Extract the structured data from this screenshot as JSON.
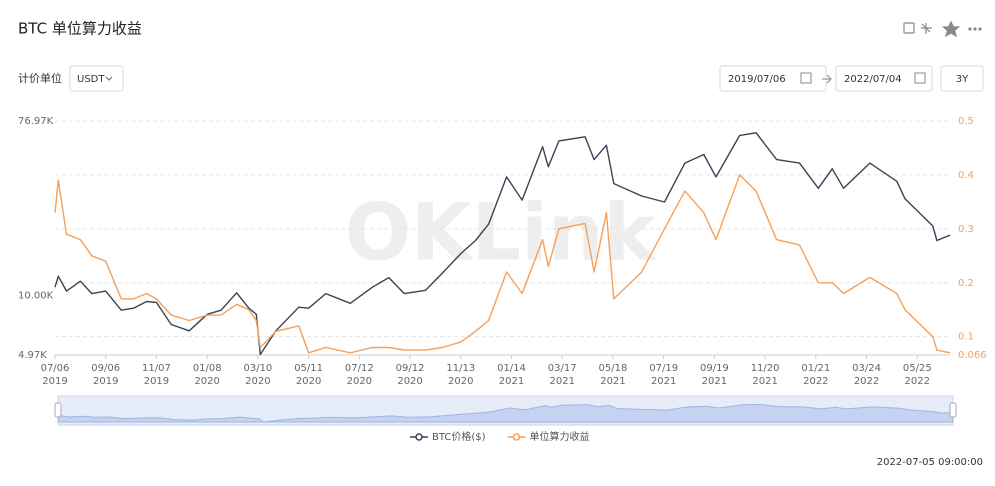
{
  "title": "BTC 单位算力收益",
  "controls": {
    "unit_label": "计价单位",
    "unit": "USDT",
    "start_date": "2019/07/06",
    "end_date": "2022/07/04",
    "range": "3Y"
  },
  "watermark": "OKLink",
  "timestamp": "2022-07-05 09:00:00",
  "chart_data": {
    "type": "line",
    "x": [
      "2019-07-06",
      "2019-07-10",
      "2019-07-20",
      "2019-08-06",
      "2019-08-20",
      "2019-09-06",
      "2019-09-25",
      "2019-10-10",
      "2019-10-26",
      "2019-11-07",
      "2019-11-25",
      "2019-12-17",
      "2020-01-08",
      "2020-01-25",
      "2020-02-13",
      "2020-02-28",
      "2020-03-08",
      "2020-03-13",
      "2020-04-01",
      "2020-04-29",
      "2020-05-11",
      "2020-06-01",
      "2020-07-01",
      "2020-07-28",
      "2020-08-17",
      "2020-09-05",
      "2020-10-01",
      "2020-10-21",
      "2020-11-13",
      "2020-12-01",
      "2020-12-17",
      "2021-01-08",
      "2021-01-27",
      "2021-02-21",
      "2021-02-28",
      "2021-03-13",
      "2021-04-14",
      "2021-04-25",
      "2021-05-10",
      "2021-05-19",
      "2021-06-22",
      "2021-07-20",
      "2021-08-14",
      "2021-09-06",
      "2021-09-21",
      "2021-10-20",
      "2021-11-09",
      "2021-12-04",
      "2022-01-01",
      "2022-01-24",
      "2022-02-10",
      "2022-02-24",
      "2022-03-28",
      "2022-04-30",
      "2022-05-10",
      "2022-06-13",
      "2022-06-18",
      "2022-07-04"
    ],
    "series": [
      {
        "name": "BTC价格($)",
        "color": "#3b4256",
        "axis": "y",
        "values": [
          11000,
          12500,
          10500,
          11800,
          10200,
          10500,
          8400,
          8600,
          9300,
          9200,
          7100,
          6600,
          8000,
          8400,
          10300,
          8600,
          8000,
          5000,
          6600,
          8700,
          8600,
          10200,
          9100,
          11000,
          12300,
          10200,
          10600,
          12900,
          16300,
          19000,
          23000,
          40000,
          30500,
          57000,
          45000,
          61000,
          64000,
          49000,
          58000,
          37000,
          32000,
          29800,
          47000,
          52000,
          40000,
          65000,
          67000,
          49000,
          47000,
          35000,
          44000,
          35000,
          47000,
          38000,
          31000,
          22500,
          19000,
          20200
        ]
      },
      {
        "name": "单位算力收益",
        "color": "#f5a05a",
        "axis": "y2",
        "values": [
          0.33,
          0.39,
          0.29,
          0.28,
          0.25,
          0.24,
          0.17,
          0.17,
          0.18,
          0.17,
          0.14,
          0.13,
          0.14,
          0.14,
          0.16,
          0.15,
          0.13,
          0.08,
          0.11,
          0.12,
          0.07,
          0.08,
          0.07,
          0.08,
          0.08,
          0.075,
          0.075,
          0.08,
          0.09,
          0.11,
          0.13,
          0.22,
          0.18,
          0.28,
          0.23,
          0.3,
          0.31,
          0.22,
          0.33,
          0.17,
          0.22,
          0.3,
          0.37,
          0.33,
          0.28,
          0.4,
          0.37,
          0.28,
          0.27,
          0.2,
          0.2,
          0.18,
          0.21,
          0.18,
          0.15,
          0.1,
          0.075,
          0.07
        ]
      }
    ],
    "xlim": [
      "2019-07-06",
      "2022-07-04"
    ],
    "xticks": [
      {
        "value": "2019-07-06",
        "label": "07/06",
        "year": "2019"
      },
      {
        "value": "2019-09-06",
        "label": "09/06",
        "year": "2019"
      },
      {
        "value": "2019-11-07",
        "label": "11/07",
        "year": "2019"
      },
      {
        "value": "2020-01-08",
        "label": "01/08",
        "year": "2020"
      },
      {
        "value": "2020-03-10",
        "label": "03/10",
        "year": "2020"
      },
      {
        "value": "2020-05-11",
        "label": "05/11",
        "year": "2020"
      },
      {
        "value": "2020-07-12",
        "label": "07/12",
        "year": "2020"
      },
      {
        "value": "2020-09-12",
        "label": "09/12",
        "year": "2020"
      },
      {
        "value": "2020-11-13",
        "label": "11/13",
        "year": "2020"
      },
      {
        "value": "2021-01-14",
        "label": "01/14",
        "year": "2021"
      },
      {
        "value": "2021-03-17",
        "label": "03/17",
        "year": "2021"
      },
      {
        "value": "2021-05-18",
        "label": "05/18",
        "year": "2021"
      },
      {
        "value": "2021-07-19",
        "label": "07/19",
        "year": "2021"
      },
      {
        "value": "2021-09-19",
        "label": "09/19",
        "year": "2021"
      },
      {
        "value": "2021-11-20",
        "label": "11/20",
        "year": "2021"
      },
      {
        "value": "2022-01-21",
        "label": "01/21",
        "year": "2022"
      },
      {
        "value": "2022-03-24",
        "label": "03/24",
        "year": "2022"
      },
      {
        "value": "2022-05-25",
        "label": "05/25",
        "year": "2022"
      }
    ],
    "ylim": [
      4970,
      76970
    ],
    "log_scale": true,
    "yticks": [
      {
        "value": 4970,
        "label": "4.97K"
      },
      {
        "value": 10000,
        "label": "10.00K"
      },
      {
        "value": 76970,
        "label": "76.97K"
      }
    ],
    "y2lim": [
      0.066,
      0.5
    ],
    "y2ticks": [
      0.066,
      0.1,
      0.2,
      0.3,
      0.4,
      0.5
    ],
    "grid": true,
    "legend": "bottom"
  }
}
